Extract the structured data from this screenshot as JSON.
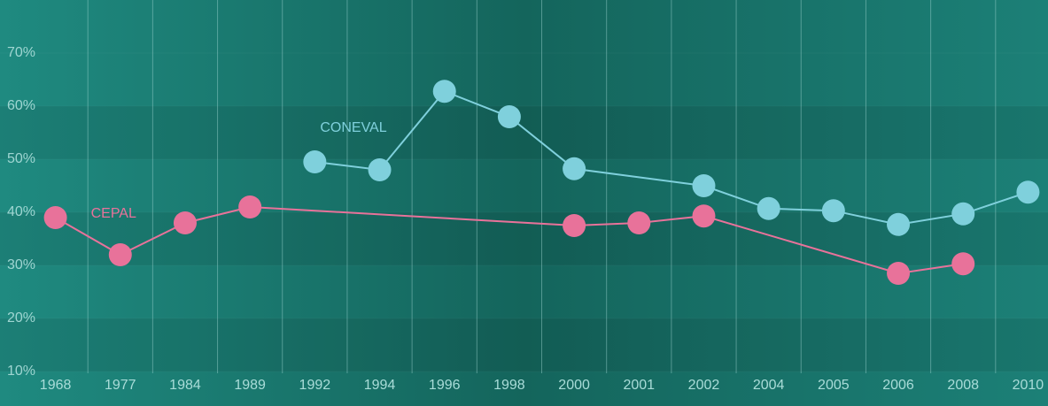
{
  "chart_data": {
    "type": "line",
    "categories": [
      "1968",
      "1977",
      "1984",
      "1989",
      "1992",
      "1994",
      "1996",
      "1998",
      "2000",
      "2001",
      "2002",
      "2004",
      "2005",
      "2006",
      "2008",
      "2010"
    ],
    "series": [
      {
        "name": "CEPAL",
        "color": "#e8729a",
        "values": [
          39,
          32,
          38,
          41,
          null,
          null,
          null,
          null,
          37.5,
          38,
          39.3,
          null,
          null,
          28.5,
          30.3,
          null
        ]
      },
      {
        "name": "CONEVAL",
        "color": "#7fd0dc",
        "values": [
          null,
          null,
          null,
          null,
          49.5,
          48,
          62.8,
          58,
          48.2,
          null,
          45,
          40.7,
          40.3,
          37.7,
          39.7,
          43.8
        ]
      }
    ],
    "ylim": [
      5,
      80
    ],
    "yticks": [
      {
        "value": 10,
        "label": "10%"
      },
      {
        "value": 20,
        "label": "20%"
      },
      {
        "value": 30,
        "label": "30%"
      },
      {
        "value": 40,
        "label": "40%"
      },
      {
        "value": 50,
        "label": "50%"
      },
      {
        "value": 60,
        "label": "60%"
      },
      {
        "value": 70,
        "label": "70%"
      }
    ],
    "grid": true
  }
}
